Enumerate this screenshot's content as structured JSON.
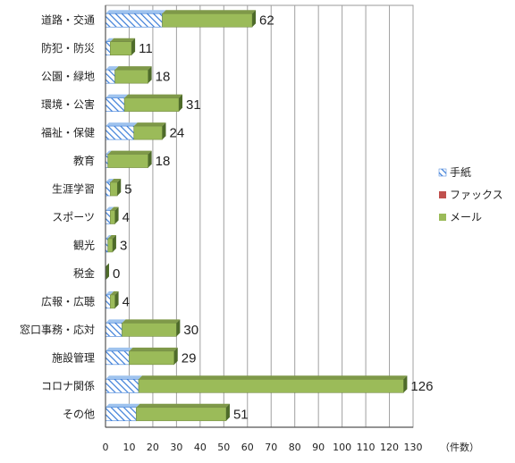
{
  "chart_data": {
    "type": "bar",
    "orientation": "horizontal",
    "stacked": true,
    "categories": [
      "道路・交通",
      "防犯・防災",
      "公園・緑地",
      "環境・公害",
      "福祉・保健",
      "教育",
      "生涯学習",
      "スポーツ",
      "観光",
      "税金",
      "広報・広聴",
      "窓口事務・応対",
      "施設管理",
      "コロナ関係",
      "その他"
    ],
    "series": [
      {
        "name": "手紙",
        "color": "#4f81bd",
        "values": [
          24,
          2,
          4,
          8,
          12,
          1,
          2,
          2,
          1,
          0,
          2,
          7,
          10,
          14,
          13
        ]
      },
      {
        "name": "ファックス",
        "color": "#c0504d",
        "values": [
          0,
          0,
          0,
          0,
          0,
          0,
          0,
          0,
          0,
          0,
          0,
          0,
          0,
          0,
          0
        ]
      },
      {
        "name": "メール",
        "color": "#9bbb59",
        "values": [
          38,
          9,
          14,
          23,
          12,
          17,
          3,
          2,
          2,
          0,
          2,
          23,
          19,
          112,
          38
        ]
      }
    ],
    "totals": [
      "62",
      "11",
      "18",
      "31",
      "24",
      "18",
      "5",
      "4",
      "3",
      "0",
      "4",
      "30",
      "29",
      "126",
      "51"
    ],
    "xticks": [
      "0",
      "10",
      "20",
      "30",
      "40",
      "50",
      "60",
      "70",
      "80",
      "90",
      "100",
      "110",
      "120",
      "130"
    ],
    "xlim": [
      0,
      130
    ],
    "xlabel": "（件数）",
    "grid": true,
    "legend_position": "right"
  }
}
